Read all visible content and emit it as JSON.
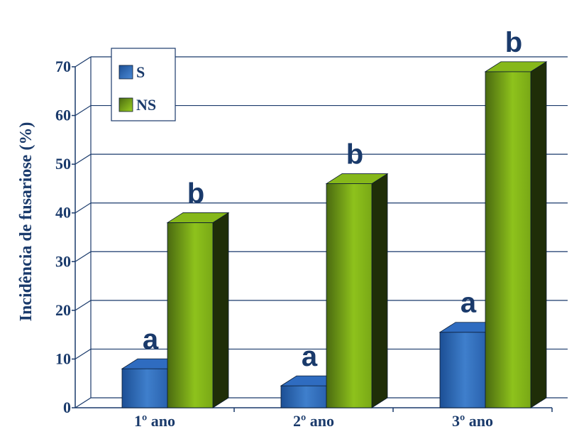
{
  "chart_data": {
    "type": "bar",
    "title": "",
    "xlabel": "",
    "ylabel": "Incidência de  fusariose (%)",
    "ylim": [
      0,
      70
    ],
    "yticks": [
      0,
      10,
      20,
      30,
      40,
      50,
      60,
      70
    ],
    "grid": true,
    "legend_position": "top-left",
    "categories": [
      "1º ano",
      "2º ano",
      "3º ano"
    ],
    "series": [
      {
        "name": "S",
        "values": [
          8,
          4.5,
          15.5
        ],
        "labels": [
          "a",
          "a",
          "a"
        ],
        "color": "#2a64b0"
      },
      {
        "name": "NS",
        "values": [
          38,
          46,
          69
        ],
        "labels": [
          "b",
          "b",
          "b"
        ],
        "color": "#6e9a14"
      }
    ],
    "text_color": "#1a3a6b"
  }
}
